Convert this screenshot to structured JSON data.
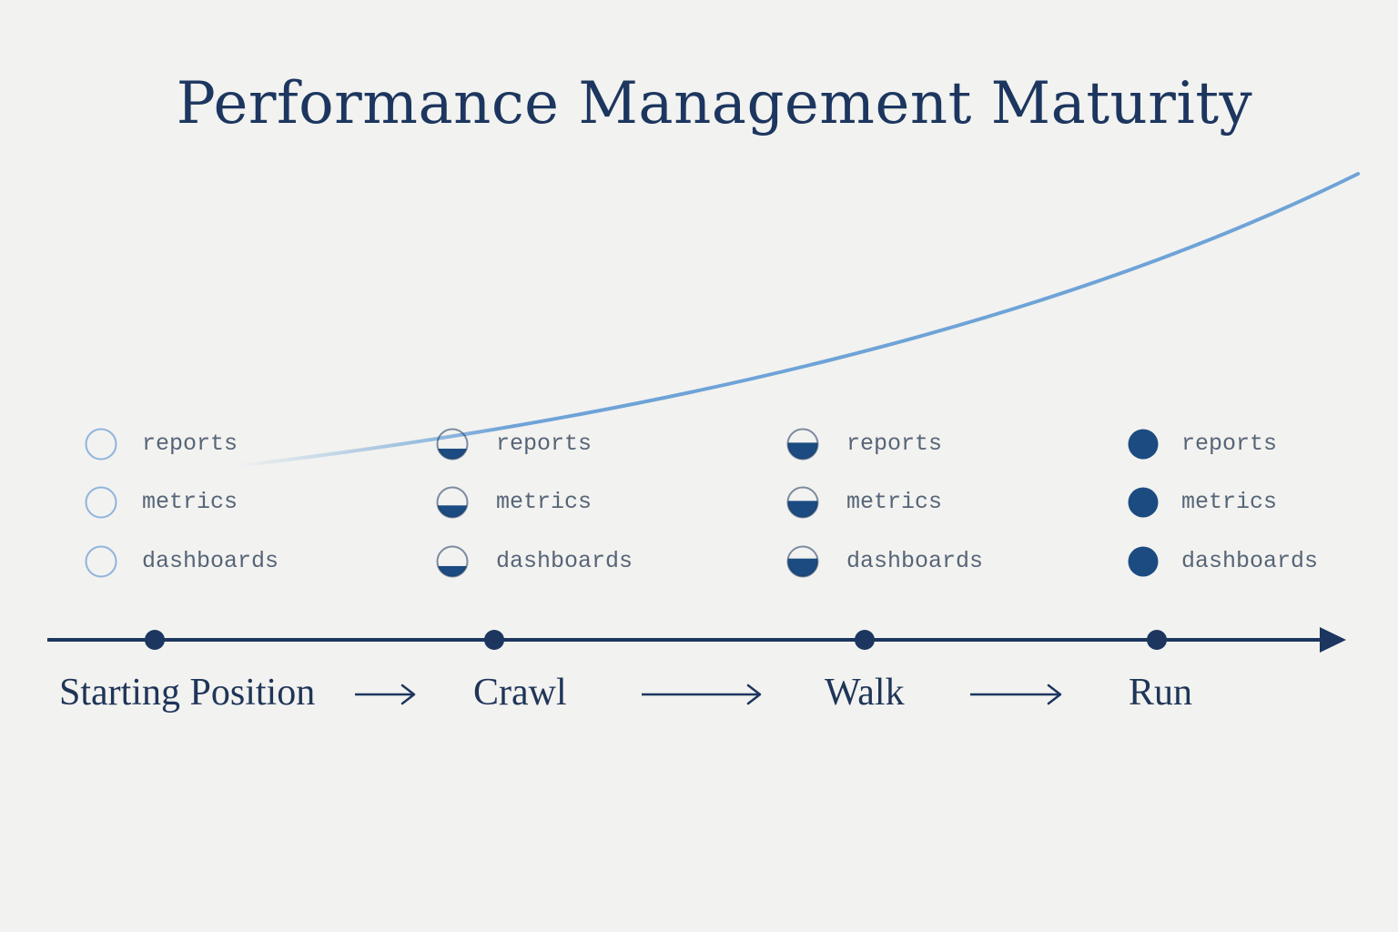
{
  "title": "Performance Management Maturity",
  "colors": {
    "navy": "#1c365f",
    "dot_fill": "#1b4b80",
    "curve": "#6ea3d7",
    "outline_light": "#8fb4dd",
    "label_gray": "#566577",
    "background": "#f2f2f0"
  },
  "stages": [
    {
      "name": "Starting Position",
      "items": [
        {
          "label": "reports",
          "fill": 0.0
        },
        {
          "label": "metrics",
          "fill": 0.0
        },
        {
          "label": "dashboards",
          "fill": 0.0
        }
      ]
    },
    {
      "name": "Crawl",
      "items": [
        {
          "label": "reports",
          "fill": 0.35
        },
        {
          "label": "metrics",
          "fill": 0.4
        },
        {
          "label": "dashboards",
          "fill": 0.35
        }
      ]
    },
    {
      "name": "Walk",
      "items": [
        {
          "label": "reports",
          "fill": 0.55
        },
        {
          "label": "metrics",
          "fill": 0.55
        },
        {
          "label": "dashboards",
          "fill": 0.6
        }
      ]
    },
    {
      "name": "Run",
      "items": [
        {
          "label": "reports",
          "fill": 1.0
        },
        {
          "label": "metrics",
          "fill": 1.0
        },
        {
          "label": "dashboards",
          "fill": 1.0
        }
      ]
    }
  ]
}
